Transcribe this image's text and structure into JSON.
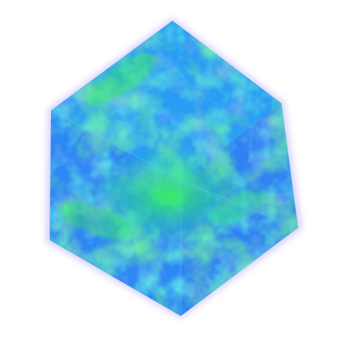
{
  "scene": {
    "subject": "volume-rendered-cube",
    "background_color": "#ffffff",
    "colors": {
      "deep_blue": "#2f6cf2",
      "mid_blue": "#2e8ff5",
      "cyan": "#29b6f2",
      "teal": "#1fd6b8",
      "green": "#2ff04a",
      "violet_edge": "#8e7cf0"
    },
    "colormap": "blue-cyan-green"
  }
}
